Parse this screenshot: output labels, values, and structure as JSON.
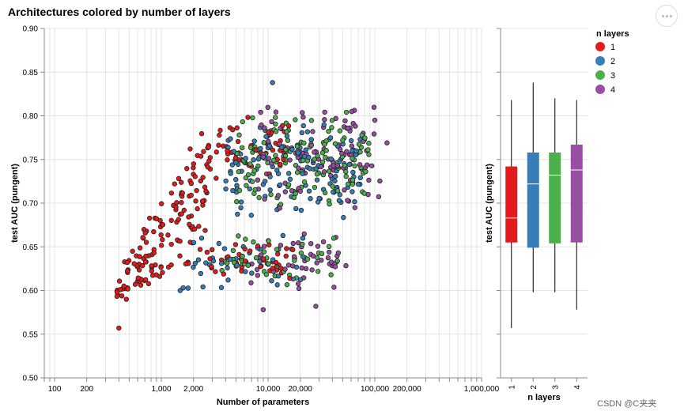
{
  "chart_data": [
    {
      "type": "scatter",
      "title": "Architectures colored by number of layers",
      "xlabel": "Number of parameters",
      "ylabel": "test AUC (pungent)",
      "xscale": "log",
      "xlim": [
        80,
        1000000
      ],
      "ylim": [
        0.5,
        0.9
      ],
      "grid": true,
      "x_tick_labels": [
        "100",
        "200",
        "1,000",
        "2,000",
        "10,000",
        "20,000",
        "100,000",
        "200,000",
        "1,000,000"
      ],
      "y_tick_labels": [
        "0.50",
        "0.55",
        "0.60",
        "0.65",
        "0.70",
        "0.75",
        "0.80",
        "0.85",
        "0.90"
      ],
      "clusters": [
        {
          "layers": 1,
          "count": 150,
          "x_log10": [
            2.58,
            3.45
          ],
          "y_upper_at_xmin": 0.62,
          "y_upper_at_xmax": 0.8,
          "y_lower_at_xmin": 0.59,
          "y_lower_at_xmax": 0.64
        },
        {
          "layers": 1,
          "count": 40,
          "x_log10": [
            3.45,
            4.25
          ],
          "y": [
            0.61,
            0.66
          ]
        },
        {
          "layers": 1,
          "count": 50,
          "x_log10": [
            3.45,
            4.2
          ],
          "y": [
            0.72,
            0.8
          ]
        },
        {
          "layers": 2,
          "count": 45,
          "x_log10": [
            3.25,
            4.4
          ],
          "y": [
            0.6,
            0.67
          ]
        },
        {
          "layers": 2,
          "count": 130,
          "x_log10": [
            3.6,
            4.9
          ],
          "y": [
            0.68,
            0.8
          ]
        },
        {
          "layers": 3,
          "count": 45,
          "x_log10": [
            3.55,
            4.65
          ],
          "y": [
            0.6,
            0.67
          ]
        },
        {
          "layers": 3,
          "count": 140,
          "x_log10": [
            3.7,
            4.95
          ],
          "y": [
            0.69,
            0.81
          ]
        },
        {
          "layers": 4,
          "count": 45,
          "x_log10": [
            3.8,
            4.75
          ],
          "y": [
            0.6,
            0.67
          ]
        },
        {
          "layers": 4,
          "count": 110,
          "x_log10": [
            3.9,
            5.05
          ],
          "y": [
            0.69,
            0.82
          ]
        }
      ],
      "fixed_points": [
        {
          "x": 400,
          "y": 0.557,
          "layers": 1
        },
        {
          "x": 470,
          "y": 0.59,
          "layers": 1
        },
        {
          "x": 470,
          "y": 0.603,
          "layers": 1
        },
        {
          "x": 1500,
          "y": 0.6,
          "layers": 2
        },
        {
          "x": 1600,
          "y": 0.603,
          "layers": 2
        },
        {
          "x": 11000,
          "y": 0.838,
          "layers": 2
        },
        {
          "x": 9000,
          "y": 0.578,
          "layers": 4
        },
        {
          "x": 28000,
          "y": 0.582,
          "layers": 4
        },
        {
          "x": 130000,
          "y": 0.769,
          "layers": 4
        },
        {
          "x": 100000,
          "y": 0.795,
          "layers": 4
        }
      ]
    },
    {
      "type": "box",
      "xlabel": "n layers",
      "ylabel": "test AUC (pungent)",
      "ylim": [
        0.5,
        0.9
      ],
      "categories": [
        "1",
        "2",
        "3",
        "4"
      ],
      "boxes": [
        {
          "layers": "1",
          "min": 0.557,
          "q1": 0.655,
          "median": 0.683,
          "q3": 0.742,
          "max": 0.818
        },
        {
          "layers": "2",
          "min": 0.598,
          "q1": 0.649,
          "median": 0.722,
          "q3": 0.758,
          "max": 0.838
        },
        {
          "layers": "3",
          "min": 0.598,
          "q1": 0.654,
          "median": 0.732,
          "q3": 0.758,
          "max": 0.82
        },
        {
          "layers": "4",
          "min": 0.578,
          "q1": 0.655,
          "median": 0.738,
          "q3": 0.767,
          "max": 0.818
        }
      ]
    }
  ],
  "legend": {
    "title": "n layers",
    "items": [
      {
        "label": "1",
        "color": "#e41a1c"
      },
      {
        "label": "2",
        "color": "#377eb8"
      },
      {
        "label": "3",
        "color": "#4daf4a"
      },
      {
        "label": "4",
        "color": "#984ea3"
      }
    ]
  },
  "watermark": "CSDN @C夹夹",
  "menu": {
    "icon": "ellipsis-icon"
  }
}
